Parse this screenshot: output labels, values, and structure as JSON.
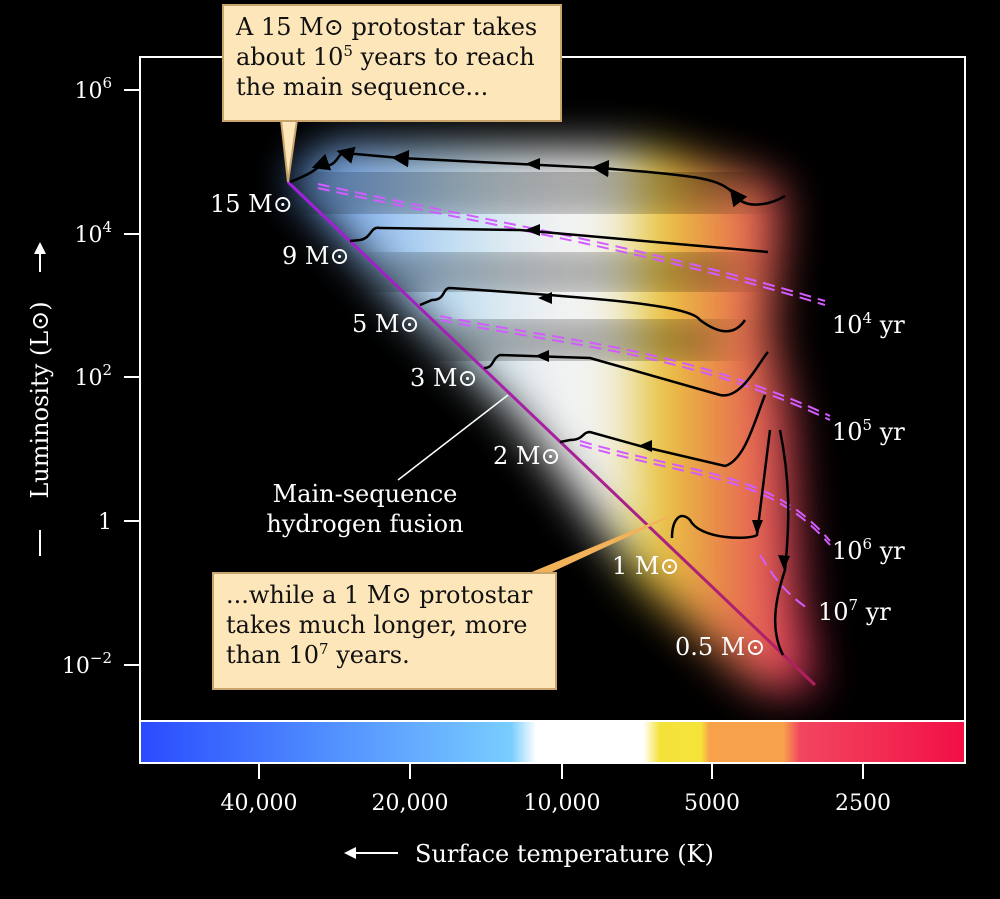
{
  "chart_data": {
    "type": "line",
    "title": "",
    "xlabel": "Surface temperature (K)",
    "ylabel": "Luminosity (L⊙)",
    "x_ticks": [
      "40,000",
      "20,000",
      "10,000",
      "5000",
      "2500"
    ],
    "y_ticks": [
      {
        "base": "10",
        "exp": "6"
      },
      {
        "base": "10",
        "exp": "4"
      },
      {
        "base": "10",
        "exp": "2"
      },
      {
        "base": "1",
        "exp": ""
      },
      {
        "base": "10",
        "exp": "−2"
      }
    ],
    "x_scale": "log (temperature decreasing to the right)",
    "y_scale": "log",
    "main_sequence_label": [
      "Main-sequence",
      "hydrogen fusion"
    ],
    "stellar_masses": [
      "15 M⊙",
      "9 M⊙",
      "5 M⊙",
      "3 M⊙",
      "2 M⊙",
      "1 M⊙",
      "0.5 M⊙"
    ],
    "isochrones": [
      {
        "base": "10",
        "exp": "4",
        "unit": "yr"
      },
      {
        "base": "10",
        "exp": "5",
        "unit": "yr"
      },
      {
        "base": "10",
        "exp": "6",
        "unit": "yr"
      },
      {
        "base": "10",
        "exp": "7",
        "unit": "yr"
      }
    ],
    "colors": {
      "main_sequence": "#a020e0",
      "isochrone": "#d25cff",
      "track": "#000000",
      "callout_bg": "#fde6b9"
    }
  },
  "callouts": {
    "top": {
      "l1a": "A 15 M⊙ protostar takes",
      "l2a": "about 10",
      "l2sup": "5",
      "l2b": " years to reach",
      "l3": "the main sequence..."
    },
    "bottom": {
      "l1": "...while a 1 M⊙ protostar",
      "l2": "takes much longer, more",
      "l3a": "than 10",
      "l3sup": "7",
      "l3b": " years."
    }
  }
}
